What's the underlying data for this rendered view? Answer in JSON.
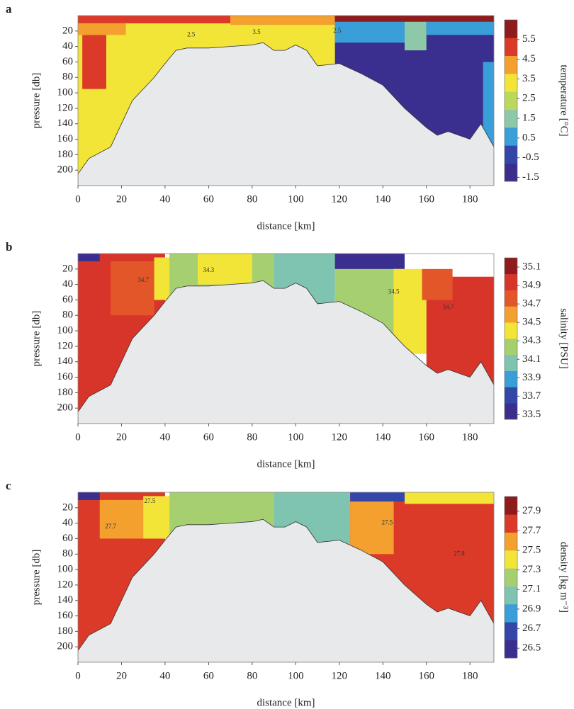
{
  "chart_data": [
    {
      "type": "contour",
      "panel_label": "a",
      "xlabel": "distance [km]",
      "ylabel": "pressure [db]",
      "xlim": [
        0,
        191
      ],
      "xticks": [
        0,
        20,
        40,
        60,
        80,
        100,
        120,
        140,
        160,
        180
      ],
      "ylim": [
        220,
        0
      ],
      "yticks": [
        20,
        40,
        60,
        80,
        100,
        120,
        140,
        160,
        180,
        200
      ],
      "colorbar": {
        "label": "temperature [°C]",
        "clim": [
          -1.7,
          6.5
        ],
        "ticks": [
          5.5,
          4.5,
          3.5,
          2.5,
          1.5,
          0.5,
          -0.5,
          -1.5
        ],
        "colors": [
          "#3a2f8e",
          "#3447a8",
          "#3a9fd8",
          "#8dc9a8",
          "#bcd85c",
          "#f3e438",
          "#f3a02e",
          "#dc3a28",
          "#8e1c1c"
        ]
      },
      "patches": [
        {
          "x": [
            0,
            118
          ],
          "y": [
            0,
            220
          ],
          "value": 3.3
        },
        {
          "x": [
            0,
            70
          ],
          "y": [
            0,
            10
          ],
          "value": 5.2
        },
        {
          "x": [
            70,
            118
          ],
          "y": [
            0,
            12
          ],
          "value": 4.3
        },
        {
          "x": [
            2,
            13
          ],
          "y": [
            25,
            95
          ],
          "value": 5.0
        },
        {
          "x": [
            0,
            22
          ],
          "y": [
            10,
            25
          ],
          "value": 4.4
        },
        {
          "x": [
            118,
            191
          ],
          "y": [
            0,
            220
          ],
          "value": -1.0
        },
        {
          "x": [
            118,
            191
          ],
          "y": [
            0,
            8
          ],
          "value": 6.0
        },
        {
          "x": [
            118,
            150
          ],
          "y": [
            8,
            35
          ],
          "value": 0.9
        },
        {
          "x": [
            150,
            160
          ],
          "y": [
            8,
            45
          ],
          "value": 1.8
        },
        {
          "x": [
            160,
            191
          ],
          "y": [
            8,
            25
          ],
          "value": 1.0
        },
        {
          "x": [
            186,
            191
          ],
          "y": [
            60,
            170
          ],
          "value": 0.4
        }
      ],
      "bottom": {
        "x": [
          0,
          5,
          15,
          20,
          25,
          30,
          35,
          40,
          45,
          50,
          60,
          70,
          80,
          85,
          90,
          95,
          100,
          105,
          110,
          120,
          130,
          140,
          150,
          160,
          165,
          170,
          175,
          180,
          185,
          190,
          191
        ],
        "y": [
          205,
          185,
          170,
          140,
          110,
          95,
          80,
          62,
          45,
          42,
          42,
          40,
          38,
          35,
          45,
          45,
          38,
          45,
          65,
          62,
          75,
          90,
          120,
          145,
          155,
          150,
          155,
          160,
          140,
          165,
          170
        ]
      },
      "contour_labels": [
        {
          "text": "2.5",
          "x": 52,
          "y": 25
        },
        {
          "text": "3.5",
          "x": 82,
          "y": 22
        },
        {
          "text": "2.5",
          "x": 119,
          "y": 20
        }
      ]
    },
    {
      "type": "contour",
      "panel_label": "b",
      "xlabel": "distance [km]",
      "ylabel": "pressure [db]",
      "xlim": [
        0,
        191
      ],
      "xticks": [
        0,
        20,
        40,
        60,
        80,
        100,
        120,
        140,
        160,
        180
      ],
      "ylim": [
        220,
        0
      ],
      "yticks": [
        20,
        40,
        60,
        80,
        100,
        120,
        140,
        160,
        180,
        200
      ],
      "colorbar": {
        "label": "salinity [PSU]",
        "clim": [
          33.45,
          35.2
        ],
        "ticks": [
          35.1,
          34.9,
          34.7,
          34.5,
          34.3,
          34.1,
          33.9,
          33.7,
          33.5
        ],
        "colors": [
          "#3a2f8e",
          "#3447a8",
          "#3a9fd8",
          "#7ec4b0",
          "#a6d070",
          "#f3e438",
          "#f3a02e",
          "#e3562a",
          "#d8352a",
          "#8e1c1c"
        ]
      },
      "patches": [
        {
          "x": [
            0,
            40
          ],
          "y": [
            0,
            220
          ],
          "value": 34.95
        },
        {
          "x": [
            0,
            10
          ],
          "y": [
            0,
            10
          ],
          "value": 33.6
        },
        {
          "x": [
            15,
            35
          ],
          "y": [
            10,
            80
          ],
          "value": 34.7
        },
        {
          "x": [
            35,
            42
          ],
          "y": [
            5,
            60
          ],
          "value": 34.5
        },
        {
          "x": [
            42,
            90
          ],
          "y": [
            0,
            220
          ],
          "value": 34.3
        },
        {
          "x": [
            55,
            80
          ],
          "y": [
            0,
            40
          ],
          "value": 34.35
        },
        {
          "x": [
            90,
            118
          ],
          "y": [
            0,
            220
          ],
          "value": 34.05
        },
        {
          "x": [
            118,
            145
          ],
          "y": [
            0,
            220
          ],
          "value": 34.25
        },
        {
          "x": [
            118,
            150
          ],
          "y": [
            0,
            20
          ],
          "value": 33.6
        },
        {
          "x": [
            145,
            160
          ],
          "y": [
            20,
            130
          ],
          "value": 34.5
        },
        {
          "x": [
            160,
            191
          ],
          "y": [
            30,
            220
          ],
          "value": 34.95
        },
        {
          "x": [
            158,
            172
          ],
          "y": [
            20,
            60
          ],
          "value": 34.7
        }
      ],
      "bottom": {
        "x": [
          0,
          5,
          15,
          20,
          25,
          30,
          35,
          40,
          45,
          50,
          60,
          70,
          80,
          85,
          90,
          95,
          100,
          105,
          110,
          120,
          130,
          140,
          150,
          160,
          165,
          170,
          175,
          180,
          185,
          190,
          191
        ],
        "y": [
          205,
          185,
          170,
          140,
          110,
          95,
          80,
          62,
          45,
          42,
          42,
          40,
          38,
          35,
          45,
          45,
          38,
          45,
          65,
          62,
          75,
          90,
          120,
          145,
          155,
          150,
          155,
          160,
          140,
          165,
          170
        ]
      },
      "contour_labels": [
        {
          "text": "34.7",
          "x": 30,
          "y": 35
        },
        {
          "text": "34.3",
          "x": 60,
          "y": 22
        },
        {
          "text": "34.5",
          "x": 145,
          "y": 50
        },
        {
          "text": "34.7",
          "x": 170,
          "y": 70
        }
      ]
    },
    {
      "type": "contour",
      "panel_label": "c",
      "xlabel": "distance [km]",
      "ylabel": "pressure [db]",
      "xlim": [
        0,
        191
      ],
      "xticks": [
        0,
        20,
        40,
        60,
        80,
        100,
        120,
        140,
        160,
        180
      ],
      "ylim": [
        220,
        0
      ],
      "yticks": [
        20,
        40,
        60,
        80,
        100,
        120,
        140,
        160,
        180,
        200
      ],
      "colorbar": {
        "label": "density [kg m⁻³]",
        "clim": [
          26.4,
          28.05
        ],
        "ticks": [
          27.9,
          27.7,
          27.5,
          27.3,
          27.1,
          26.9,
          26.7,
          26.5
        ],
        "colors": [
          "#3a2f8e",
          "#3447a8",
          "#3a9fd8",
          "#7ec4b0",
          "#a6d070",
          "#f3e438",
          "#f3a02e",
          "#dc3a28",
          "#8e1c1c"
        ]
      },
      "patches": [
        {
          "x": [
            0,
            40
          ],
          "y": [
            0,
            220
          ],
          "value": 27.8
        },
        {
          "x": [
            0,
            10
          ],
          "y": [
            0,
            10
          ],
          "value": 26.5
        },
        {
          "x": [
            10,
            40
          ],
          "y": [
            10,
            60
          ],
          "value": 27.55
        },
        {
          "x": [
            30,
            42
          ],
          "y": [
            5,
            60
          ],
          "value": 27.4
        },
        {
          "x": [
            42,
            90
          ],
          "y": [
            0,
            220
          ],
          "value": 27.25
        },
        {
          "x": [
            90,
            125
          ],
          "y": [
            0,
            220
          ],
          "value": 27.05
        },
        {
          "x": [
            125,
            191
          ],
          "y": [
            0,
            220
          ],
          "value": 27.8
        },
        {
          "x": [
            125,
            150
          ],
          "y": [
            0,
            12
          ],
          "value": 26.6
        },
        {
          "x": [
            125,
            145
          ],
          "y": [
            12,
            80
          ],
          "value": 27.55
        },
        {
          "x": [
            150,
            191
          ],
          "y": [
            0,
            15
          ],
          "value": 27.45
        }
      ],
      "bottom": {
        "x": [
          0,
          5,
          15,
          20,
          25,
          30,
          35,
          40,
          45,
          50,
          60,
          70,
          80,
          85,
          90,
          95,
          100,
          105,
          110,
          120,
          130,
          140,
          150,
          160,
          165,
          170,
          175,
          180,
          185,
          190,
          191
        ],
        "y": [
          205,
          185,
          170,
          140,
          110,
          95,
          80,
          62,
          45,
          42,
          42,
          40,
          38,
          35,
          45,
          45,
          38,
          45,
          65,
          62,
          75,
          90,
          120,
          145,
          155,
          150,
          155,
          160,
          140,
          165,
          170
        ]
      },
      "contour_labels": [
        {
          "text": "27.5",
          "x": 33,
          "y": 12
        },
        {
          "text": "27.7",
          "x": 15,
          "y": 45
        },
        {
          "text": "27.5",
          "x": 142,
          "y": 40
        },
        {
          "text": "27.8",
          "x": 175,
          "y": 80
        }
      ]
    }
  ]
}
